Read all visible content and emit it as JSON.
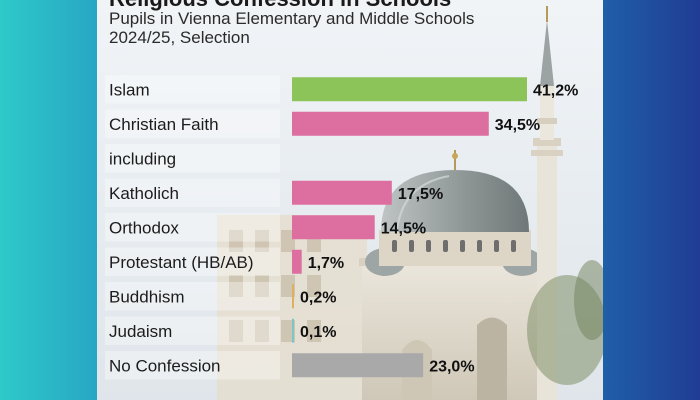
{
  "chart_data": {
    "type": "bar",
    "title": "",
    "subtitle_line1": "Pupils in Vienna Elementary and Middle Schools",
    "subtitle_line2": "2024/25, Selection",
    "xlabel": "",
    "ylabel": "",
    "xlim": [
      0,
      41.2
    ],
    "grid": false,
    "categories": [
      "Islam",
      "Christian Faith",
      "including",
      "Katholich",
      "Orthodox",
      "Protestant (HB/AB)",
      "Buddhism",
      "Judaism",
      "No Confession"
    ],
    "values": [
      41.2,
      34.5,
      null,
      17.5,
      14.5,
      1.7,
      0.2,
      0.1,
      23.0
    ],
    "value_labels": [
      "41,2%",
      "34,5%",
      "",
      "17,5%",
      "14,5%",
      "1,7%",
      "0,2%",
      "0,1%",
      "23,0%"
    ],
    "bar_colors": [
      "#8cc45a",
      "#dd6fa0",
      "",
      "#dd6fa0",
      "#dd6fa0",
      "#dd6fa0",
      "#e0b060",
      "#79c7c7",
      "#a9a9a9"
    ]
  }
}
